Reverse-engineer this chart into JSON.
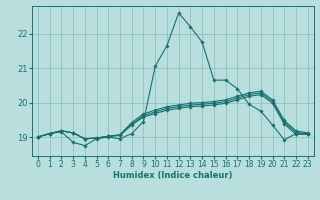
{
  "xlabel": "Humidex (Indice chaleur)",
  "bg_color": "#b8dede",
  "grid_color": "#88bbbb",
  "line_color": "#1a7070",
  "xlim": [
    -0.5,
    23.5
  ],
  "ylim": [
    18.45,
    22.8
  ],
  "yticks": [
    19,
    20,
    21,
    22
  ],
  "xticks": [
    0,
    1,
    2,
    3,
    4,
    5,
    6,
    7,
    8,
    9,
    10,
    11,
    12,
    13,
    14,
    15,
    16,
    17,
    18,
    19,
    20,
    21,
    22,
    23
  ],
  "lines": [
    [
      19.0,
      19.1,
      19.15,
      18.85,
      18.75,
      18.95,
      19.0,
      18.95,
      19.1,
      19.45,
      21.05,
      21.65,
      22.6,
      22.2,
      21.75,
      20.65,
      20.65,
      20.4,
      19.95,
      19.75,
      19.35,
      18.92,
      19.1,
      19.1
    ],
    [
      19.0,
      19.1,
      19.18,
      19.12,
      18.95,
      18.97,
      19.02,
      19.05,
      19.35,
      19.58,
      19.68,
      19.78,
      19.83,
      19.88,
      19.9,
      19.93,
      19.98,
      20.08,
      20.18,
      20.23,
      19.98,
      19.38,
      19.08,
      19.08
    ],
    [
      19.0,
      19.1,
      19.18,
      19.12,
      18.95,
      18.97,
      19.02,
      19.05,
      19.38,
      19.62,
      19.73,
      19.83,
      19.88,
      19.93,
      19.95,
      19.98,
      20.03,
      20.13,
      20.23,
      20.28,
      20.03,
      19.43,
      19.13,
      19.1
    ],
    [
      19.0,
      19.1,
      19.18,
      19.12,
      18.95,
      18.97,
      19.02,
      19.07,
      19.42,
      19.67,
      19.78,
      19.88,
      19.93,
      19.98,
      20.0,
      20.03,
      20.08,
      20.18,
      20.28,
      20.33,
      20.08,
      19.48,
      19.18,
      19.12
    ]
  ]
}
